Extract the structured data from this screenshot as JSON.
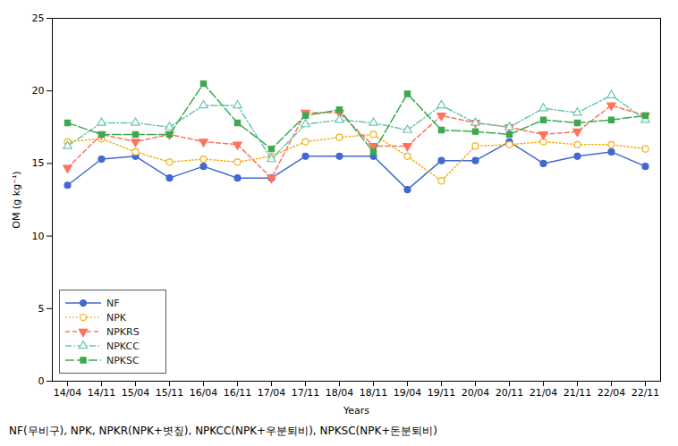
{
  "chart_data": {
    "type": "line",
    "caption": "NF(무비구), NPK, NPKR(NPK+볏짚), NPKCC(NPK+우분퇴비), NPKSC(NPK+돈분퇴비)",
    "xlabel": "Years",
    "ylabel": "OM (g kg⁻¹)",
    "categories": [
      "14/04",
      "14/11",
      "15/04",
      "15/11",
      "16/04",
      "16/11",
      "17/04",
      "17/11",
      "18/04",
      "18/11",
      "19/04",
      "19/11",
      "20/04",
      "20/11",
      "21/04",
      "21/11",
      "22/04",
      "22/11"
    ],
    "series": [
      {
        "name": "NF",
        "marker": "circle",
        "line_style": "solid",
        "values": [
          13.5,
          15.3,
          15.5,
          14.0,
          14.8,
          14.0,
          14.0,
          15.5,
          15.5,
          15.5,
          13.2,
          15.2,
          15.2,
          16.5,
          15.0,
          15.5,
          15.8,
          14.8
        ]
      },
      {
        "name": "NPK",
        "marker": "circle_open",
        "line_style": "dotted",
        "values": [
          16.5,
          16.7,
          15.8,
          15.1,
          15.3,
          15.1,
          15.5,
          16.5,
          16.8,
          17.0,
          15.5,
          13.8,
          16.2,
          16.3,
          16.5,
          16.3,
          16.3,
          16.0
        ]
      },
      {
        "name": "NPKRS",
        "marker": "triangle_down",
        "line_style": "dashed",
        "values": [
          14.7,
          17.0,
          16.5,
          17.0,
          16.5,
          16.3,
          14.0,
          18.5,
          18.5,
          16.2,
          16.2,
          18.3,
          17.8,
          17.5,
          17.0,
          17.2,
          19.0,
          18.3
        ]
      },
      {
        "name": "NPKCC",
        "marker": "triangle_up_open",
        "line_style": "dashdot",
        "values": [
          16.2,
          17.8,
          17.8,
          17.5,
          19.0,
          19.0,
          15.3,
          17.7,
          18.0,
          17.8,
          17.3,
          19.0,
          17.8,
          17.5,
          18.8,
          18.5,
          19.7,
          18.0
        ]
      },
      {
        "name": "NPKSC",
        "marker": "square",
        "line_style": "longdash",
        "values": [
          17.8,
          17.0,
          17.0,
          17.0,
          20.5,
          17.8,
          16.0,
          18.3,
          18.7,
          15.8,
          19.8,
          17.3,
          17.2,
          17.0,
          18.0,
          17.8,
          18.0,
          18.3
        ]
      }
    ],
    "ylim": [
      0,
      25
    ],
    "yticks": [
      0,
      5,
      10,
      15,
      20,
      25
    ],
    "grid": false,
    "legend": "lower left"
  }
}
